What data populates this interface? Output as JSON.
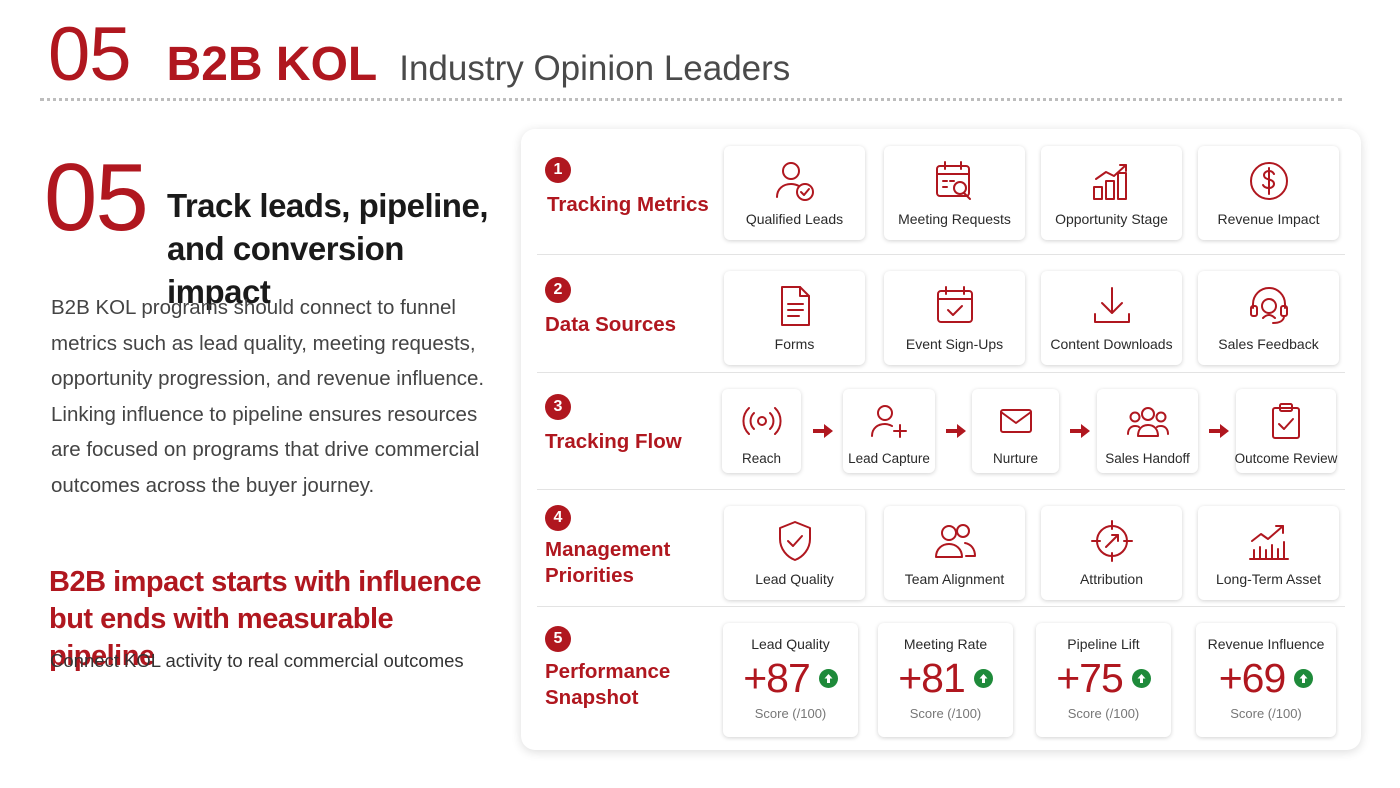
{
  "header": {
    "number": "05",
    "title": "B2B KOL",
    "subtitle": "Industry Opinion Leaders"
  },
  "left": {
    "number": "05",
    "headline": "Track leads, pipeline, and conversion impact",
    "description": "B2B KOL programs should connect to funnel metrics such as lead quality, meeting requests, opportunity progression, and revenue influence. Linking influence to pipeline ensures resources are focused on programs that drive commercial outcomes across the buyer journey.",
    "impact": "B2B impact starts with influence but ends with measurable pipeline",
    "connect": "Connect KOL activity to real commercial outcomes"
  },
  "colors": {
    "accent": "#b0171f",
    "positive": "#1e8a3a"
  },
  "sections": {
    "tracking": {
      "num": "1",
      "title": "Tracking Metrics",
      "items": [
        {
          "label": "Qualified Leads",
          "icon": "user-check-icon"
        },
        {
          "label": "Meeting Requests",
          "icon": "calendar-search-icon"
        },
        {
          "label": "Opportunity Stage",
          "icon": "bar-chart-icon"
        },
        {
          "label": "Revenue Impact",
          "icon": "dollar-icon"
        }
      ]
    },
    "sources": {
      "num": "2",
      "title": "Data Sources",
      "items": [
        {
          "label": "Forms",
          "icon": "document-icon"
        },
        {
          "label": "Event Sign-Ups",
          "icon": "calendar-check-icon"
        },
        {
          "label": "Content Downloads",
          "icon": "download-icon"
        },
        {
          "label": "Sales Feedback",
          "icon": "headset-icon"
        }
      ]
    },
    "flow": {
      "num": "3",
      "title": "Tracking Flow",
      "items": [
        {
          "label": "Reach",
          "icon": "broadcast-icon"
        },
        {
          "label": "Lead Capture",
          "icon": "user-plus-icon"
        },
        {
          "label": "Nurture",
          "icon": "envelope-icon"
        },
        {
          "label": "Sales Handoff",
          "icon": "team-icon"
        },
        {
          "label": "Outcome Review",
          "icon": "clipboard-check-icon"
        }
      ]
    },
    "priorities": {
      "num": "4",
      "title": "Management Priorities",
      "items": [
        {
          "label": "Lead Quality",
          "icon": "shield-check-icon"
        },
        {
          "label": "Team Alignment",
          "icon": "users-icon"
        },
        {
          "label": "Attribution",
          "icon": "crosshair-icon"
        },
        {
          "label": "Long-Term Asset",
          "icon": "growth-chart-icon"
        }
      ]
    },
    "snapshot": {
      "num": "5",
      "title": "Performance Snapshot",
      "items": [
        {
          "label": "Lead Quality",
          "value": "+87",
          "unit": "Score (/100)"
        },
        {
          "label": "Meeting Rate",
          "value": "+81",
          "unit": "Score (/100)"
        },
        {
          "label": "Pipeline Lift",
          "value": "+75",
          "unit": "Score (/100)"
        },
        {
          "label": "Revenue Influence",
          "value": "+69",
          "unit": "Score (/100)"
        }
      ]
    }
  }
}
